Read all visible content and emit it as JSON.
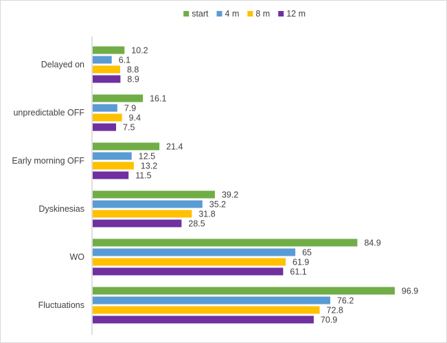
{
  "chart_data": {
    "type": "bar",
    "orientation": "horizontal",
    "title": "",
    "xlabel": "",
    "ylabel": "",
    "xlim": [
      0,
      100
    ],
    "grid": false,
    "legend_position": "top-right",
    "categories": [
      "Delayed on",
      "unpredictable OFF",
      "Early morning OFF",
      "Dyskinesias",
      "WO",
      "Fluctuations"
    ],
    "series": [
      {
        "name": "start",
        "color": "#70ad47",
        "values": [
          10.2,
          16.1,
          21.4,
          39.2,
          84.9,
          96.9
        ]
      },
      {
        "name": "4 m",
        "color": "#5b9bd5",
        "values": [
          6.1,
          7.9,
          12.5,
          35.2,
          65,
          76.2
        ]
      },
      {
        "name": "8 m",
        "color": "#ffc000",
        "values": [
          8.8,
          9.4,
          13.2,
          31.8,
          61.9,
          72.8
        ]
      },
      {
        "name": "12 m",
        "color": "#7030a0",
        "values": [
          8.9,
          7.5,
          11.5,
          28.5,
          61.1,
          70.9
        ]
      }
    ]
  }
}
